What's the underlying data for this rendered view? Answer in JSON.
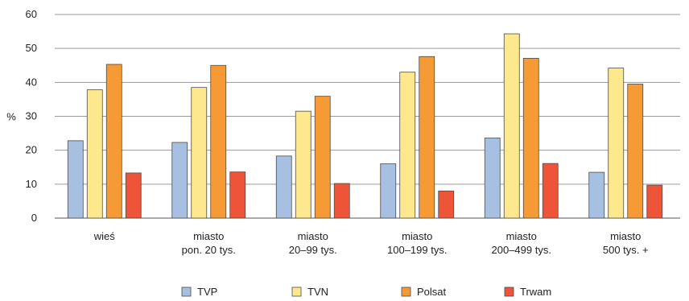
{
  "chart_data": {
    "type": "bar",
    "ylabel": "%",
    "ylim": [
      0,
      60
    ],
    "yticks": [
      0,
      10,
      20,
      30,
      40,
      50,
      60
    ],
    "grid": true,
    "legend_position": "bottom",
    "categories": [
      [
        "wieś"
      ],
      [
        "miasto",
        "pon. 20 tys."
      ],
      [
        "miasto",
        "20–99 tys."
      ],
      [
        "miasto",
        "100–199 tys."
      ],
      [
        "miasto",
        "200–499 tys."
      ],
      [
        "miasto",
        "500 tys. +"
      ]
    ],
    "series": [
      {
        "name": "TVP",
        "color": "#a7bfe0",
        "values": [
          22.8,
          22.3,
          18.3,
          16.0,
          23.6,
          13.5
        ]
      },
      {
        "name": "TVN",
        "color": "#fde88e",
        "values": [
          37.8,
          38.5,
          31.5,
          43.0,
          54.3,
          44.2
        ]
      },
      {
        "name": "Polsat",
        "color": "#f59a35",
        "values": [
          45.3,
          45.0,
          35.9,
          47.6,
          47.1,
          39.5
        ]
      },
      {
        "name": "Trwam",
        "color": "#ee5437",
        "values": [
          13.3,
          13.6,
          10.2,
          8.0,
          16.1,
          9.7
        ]
      }
    ]
  }
}
